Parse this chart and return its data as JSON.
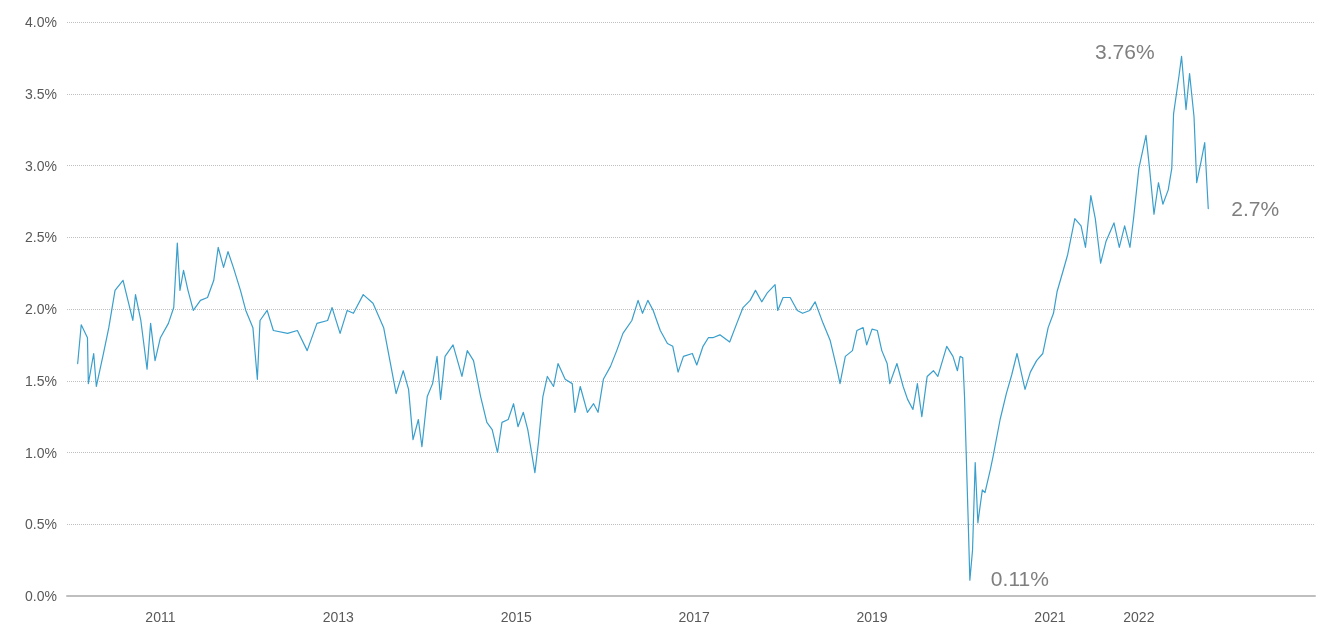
{
  "chart_data": {
    "type": "line",
    "line_style": "solid",
    "marker": "none",
    "grid": "y",
    "xlim": [
      2009.95,
      2023.98
    ],
    "xticks": [
      2011,
      2013,
      2015,
      2017,
      2019,
      2021,
      2022
    ],
    "ylim": [
      0,
      4
    ],
    "yticks": [
      {
        "value": 0,
        "label": "0.0%"
      },
      {
        "value": 0.5,
        "label": "0.5%"
      },
      {
        "value": 1,
        "label": "1.0%"
      },
      {
        "value": 1.5,
        "label": "1.5%"
      },
      {
        "value": 2,
        "label": "2.0%"
      },
      {
        "value": 2.5,
        "label": "2.5%"
      },
      {
        "value": 3,
        "label": "3.0%"
      },
      {
        "value": 3.5,
        "label": "3.5%"
      },
      {
        "value": 4,
        "label": "4.0%"
      }
    ],
    "annotations": [
      {
        "text": "3.76%",
        "x": 2022.48,
        "y": 3.76
      },
      {
        "text": "0.11%",
        "x": 2020.1,
        "y": 0.11
      },
      {
        "text": "2.7%",
        "x": 2022.78,
        "y": 2.7
      }
    ],
    "series": [
      {
        "color": "#3a9fcc",
        "x": [
          2010.07,
          2010.11,
          2010.18,
          2010.19,
          2010.25,
          2010.28,
          2010.36,
          2010.42,
          2010.49,
          2010.58,
          2010.69,
          2010.72,
          2010.78,
          2010.85,
          2010.89,
          2010.94,
          2011.0,
          2011.09,
          2011.15,
          2011.19,
          2011.22,
          2011.26,
          2011.31,
          2011.37,
          2011.45,
          2011.53,
          2011.6,
          2011.65,
          2011.71,
          2011.76,
          2011.82,
          2011.9,
          2011.96,
          2012.04,
          2012.09,
          2012.12,
          2012.2,
          2012.27,
          2012.43,
          2012.54,
          2012.65,
          2012.76,
          2012.88,
          2012.93,
          2013.02,
          2013.1,
          2013.17,
          2013.28,
          2013.39,
          2013.51,
          2013.58,
          2013.65,
          2013.73,
          2013.79,
          2013.84,
          2013.9,
          2013.94,
          2014.0,
          2014.06,
          2014.11,
          2014.15,
          2014.2,
          2014.29,
          2014.39,
          2014.45,
          2014.52,
          2014.6,
          2014.67,
          2014.73,
          2014.79,
          2014.84,
          2014.91,
          2014.97,
          2015.02,
          2015.08,
          2015.13,
          2015.21,
          2015.25,
          2015.3,
          2015.35,
          2015.42,
          2015.47,
          2015.55,
          2015.63,
          2015.66,
          2015.72,
          2015.8,
          2015.87,
          2015.92,
          2015.98,
          2016.06,
          2016.13,
          2016.2,
          2016.3,
          2016.37,
          2016.42,
          2016.48,
          2016.54,
          2016.62,
          2016.7,
          2016.76,
          2016.82,
          2016.88,
          2016.98,
          2017.03,
          2017.1,
          2017.16,
          2017.21,
          2017.29,
          2017.4,
          2017.48,
          2017.55,
          2017.63,
          2017.69,
          2017.76,
          2017.82,
          2017.91,
          2017.94,
          2018.0,
          2018.08,
          2018.16,
          2018.22,
          2018.3,
          2018.36,
          2018.45,
          2018.53,
          2018.61,
          2018.64,
          2018.7,
          2018.78,
          2018.83,
          2018.9,
          2018.94,
          2019.0,
          2019.06,
          2019.11,
          2019.17,
          2019.2,
          2019.28,
          2019.35,
          2019.4,
          2019.46,
          2019.51,
          2019.56,
          2019.62,
          2019.69,
          2019.74,
          2019.84,
          2019.91,
          2019.96,
          2019.99,
          2020.02,
          2020.04,
          2020.08,
          2020.1,
          2020.13,
          2020.16,
          2020.19,
          2020.24,
          2020.27,
          2020.33,
          2020.36,
          2020.44,
          2020.51,
          2020.57,
          2020.63,
          2020.72,
          2020.78,
          2020.85,
          2020.92,
          2020.98,
          2021.04,
          2021.08,
          2021.15,
          2021.2,
          2021.28,
          2021.35,
          2021.4,
          2021.46,
          2021.51,
          2021.57,
          2021.63,
          2021.72,
          2021.78,
          2021.84,
          2021.9,
          2021.94,
          2022.0,
          2022.08,
          2022.12,
          2022.17,
          2022.22,
          2022.27,
          2022.33,
          2022.37,
          2022.39,
          2022.45,
          2022.48,
          2022.53,
          2022.57,
          2022.62,
          2022.65,
          2022.7,
          2022.74,
          2022.78
        ],
        "values": [
          1.62,
          1.89,
          1.8,
          1.48,
          1.69,
          1.46,
          1.69,
          1.87,
          2.13,
          2.2,
          1.92,
          2.1,
          1.92,
          1.58,
          1.9,
          1.64,
          1.8,
          1.9,
          2.01,
          2.46,
          2.13,
          2.27,
          2.13,
          1.99,
          2.06,
          2.08,
          2.2,
          2.43,
          2.29,
          2.4,
          2.29,
          2.13,
          1.99,
          1.87,
          1.51,
          1.92,
          1.99,
          1.85,
          1.83,
          1.85,
          1.71,
          1.9,
          1.92,
          2.01,
          1.83,
          1.99,
          1.97,
          2.1,
          2.04,
          1.87,
          1.64,
          1.41,
          1.57,
          1.44,
          1.09,
          1.23,
          1.04,
          1.39,
          1.48,
          1.67,
          1.37,
          1.67,
          1.75,
          1.53,
          1.71,
          1.64,
          1.39,
          1.21,
          1.16,
          1.0,
          1.21,
          1.23,
          1.34,
          1.18,
          1.28,
          1.16,
          0.86,
          1.07,
          1.39,
          1.53,
          1.46,
          1.62,
          1.51,
          1.48,
          1.28,
          1.46,
          1.28,
          1.34,
          1.28,
          1.51,
          1.6,
          1.71,
          1.83,
          1.92,
          2.06,
          1.97,
          2.06,
          1.99,
          1.85,
          1.76,
          1.74,
          1.56,
          1.67,
          1.69,
          1.61,
          1.74,
          1.8,
          1.8,
          1.82,
          1.77,
          1.9,
          2.01,
          2.06,
          2.13,
          2.05,
          2.11,
          2.17,
          1.99,
          2.08,
          2.08,
          1.99,
          1.97,
          1.99,
          2.05,
          1.9,
          1.78,
          1.57,
          1.48,
          1.67,
          1.71,
          1.85,
          1.87,
          1.75,
          1.86,
          1.85,
          1.71,
          1.62,
          1.48,
          1.62,
          1.46,
          1.37,
          1.3,
          1.48,
          1.25,
          1.53,
          1.57,
          1.53,
          1.74,
          1.67,
          1.57,
          1.67,
          1.66,
          1.39,
          0.55,
          0.11,
          0.32,
          0.93,
          0.51,
          0.74,
          0.72,
          0.88,
          0.97,
          1.23,
          1.41,
          1.54,
          1.69,
          1.44,
          1.56,
          1.64,
          1.69,
          1.87,
          1.97,
          2.12,
          2.27,
          2.38,
          2.63,
          2.58,
          2.43,
          2.79,
          2.63,
          2.32,
          2.47,
          2.6,
          2.43,
          2.58,
          2.43,
          2.63,
          2.98,
          3.21,
          2.98,
          2.66,
          2.88,
          2.73,
          2.83,
          2.98,
          3.36,
          3.62,
          3.76,
          3.39,
          3.64,
          3.34,
          2.88,
          3.03,
          3.16,
          2.7
        ]
      }
    ]
  }
}
